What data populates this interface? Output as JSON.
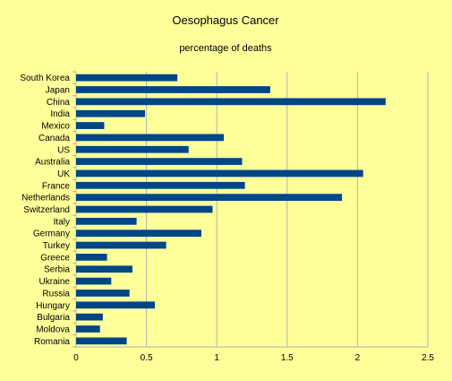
{
  "chart_data": {
    "type": "bar",
    "orientation": "horizontal",
    "title": "Oesophagus Cancer",
    "subtitle": "percentage of deaths",
    "xlabel": "",
    "ylabel": "",
    "xlim": [
      0,
      2.5
    ],
    "xticks": [
      "0",
      "0.5",
      "1",
      "1.5",
      "2",
      "2.5"
    ],
    "grid": "vertical",
    "legend": "none",
    "bar_color": "#004586",
    "categories": [
      "South Korea",
      "Japan",
      "China",
      "India",
      "Mexico",
      "Canada",
      "US",
      "Australia",
      "UK",
      "France",
      "Netherlands",
      "Switzerland",
      "Italy",
      "Germany",
      "Turkey",
      "Greece",
      "Serbia",
      "Ukraine",
      "Russia",
      "Hungary",
      "Bulgaria",
      "Moldova",
      "Romania"
    ],
    "values": [
      0.72,
      1.38,
      2.2,
      0.49,
      0.2,
      1.05,
      0.8,
      1.18,
      2.04,
      1.2,
      1.89,
      0.97,
      0.43,
      0.89,
      0.64,
      0.22,
      0.4,
      0.25,
      0.38,
      0.56,
      0.19,
      0.17,
      0.36
    ]
  }
}
